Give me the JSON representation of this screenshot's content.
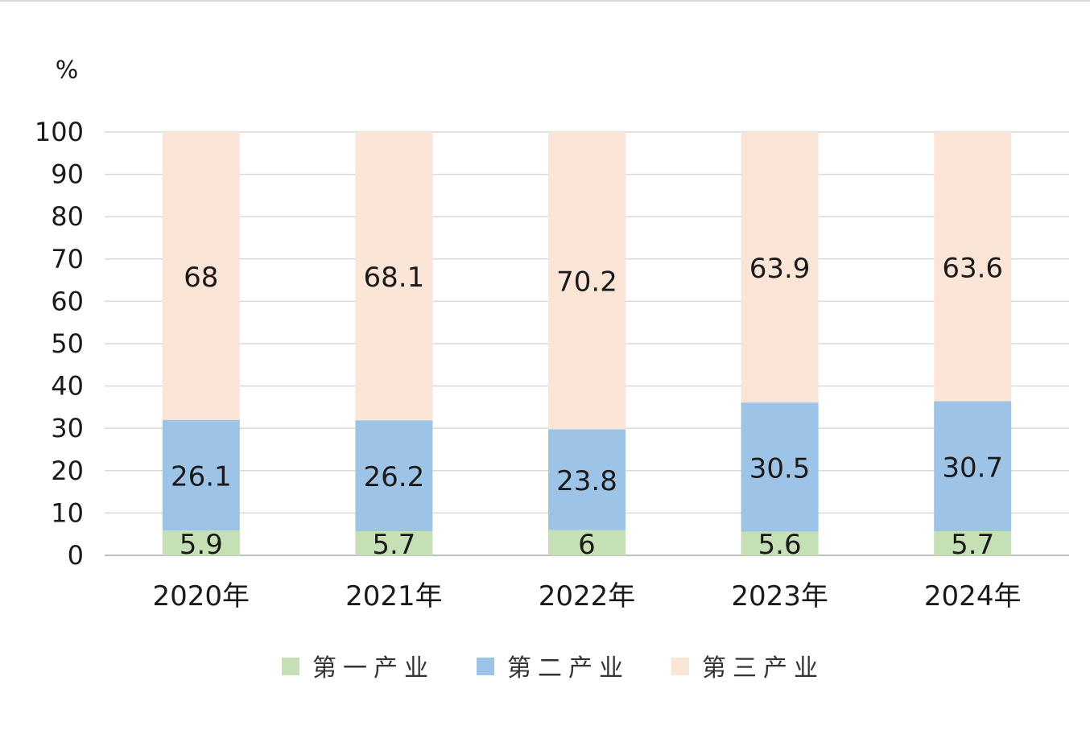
{
  "chart_data": {
    "type": "bar",
    "stacked": true,
    "unit": "%",
    "categories": [
      "2020年",
      "2021年",
      "2022年",
      "2023年",
      "2024年"
    ],
    "series": [
      {
        "name": "第一产业",
        "color": "#c5e0b4",
        "values": [
          5.9,
          5.7,
          6,
          5.6,
          5.7
        ],
        "labels": [
          "5.9",
          "5.7",
          "6",
          "5.6",
          "5.7"
        ]
      },
      {
        "name": "第二产业",
        "color": "#9dc3e6",
        "values": [
          26.1,
          26.2,
          23.8,
          30.5,
          30.7
        ],
        "labels": [
          "26.1",
          "26.2",
          "23.8",
          "30.5",
          "30.7"
        ]
      },
      {
        "name": "第三产业",
        "color": "#fbe5d6",
        "values": [
          68,
          68.1,
          70.2,
          63.9,
          63.6
        ],
        "labels": [
          "68",
          "68.1",
          "70.2",
          "63.9",
          "63.6"
        ]
      }
    ],
    "ylim": [
      0,
      100
    ],
    "yticks": [
      "0",
      "10",
      "20",
      "30",
      "40",
      "50",
      "60",
      "70",
      "80",
      "90",
      "100"
    ],
    "grid": true,
    "legend_position": "bottom"
  }
}
